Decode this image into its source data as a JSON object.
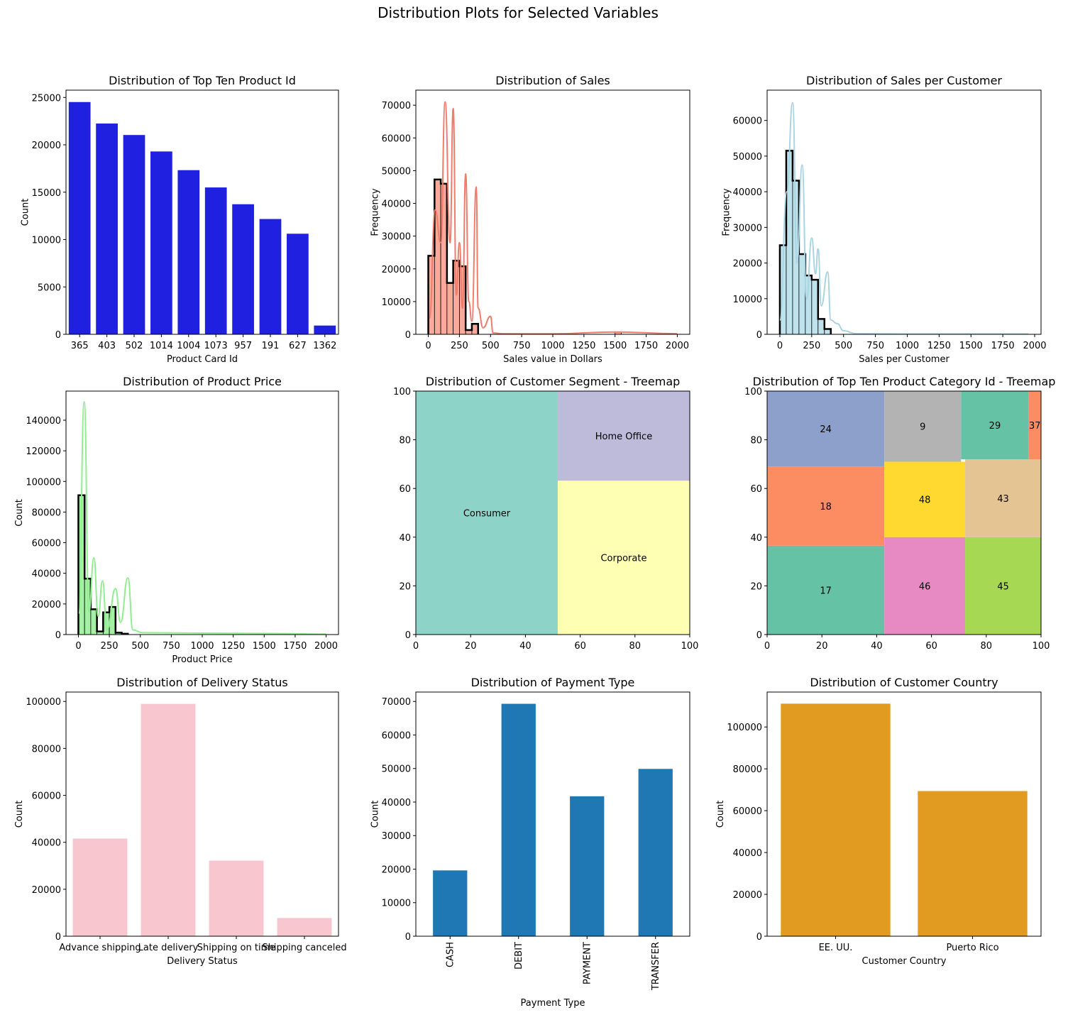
{
  "figure": {
    "title": "Distribution Plots for Selected Variables"
  },
  "chart_data": [
    {
      "id": "top-product-id",
      "type": "bar",
      "title": "Distribution of Top Ten Product Id",
      "xlabel": "Product Card Id",
      "ylabel": "Count",
      "categories": [
        "365",
        "403",
        "502",
        "1014",
        "1004",
        "1073",
        "957",
        "191",
        "627",
        "1362"
      ],
      "values": [
        24515,
        22246,
        21035,
        19298,
        17325,
        15500,
        13729,
        12169,
        10617,
        924
      ],
      "ylim": [
        0,
        25770
      ],
      "yticks": [
        0,
        5000,
        10000,
        15000,
        20000,
        25000
      ],
      "color": "#2020e0"
    },
    {
      "id": "sales",
      "type": "histogram",
      "title": "Distribution of Sales",
      "xlabel": "Sales value in Dollars",
      "ylabel": "Frequency",
      "bin_width": 50,
      "bins_start": 0,
      "values": [
        24000,
        47300,
        46000,
        15700,
        22500,
        20800,
        1300,
        3200,
        0,
        0,
        0,
        0,
        0,
        0,
        0,
        200,
        0,
        0,
        0,
        0,
        0,
        0,
        0,
        0,
        0,
        0,
        0,
        0,
        0,
        0,
        700,
        0,
        0,
        0,
        0,
        0,
        0,
        0,
        0,
        0
      ],
      "kde_peaks": [
        [
          9,
          5000
        ],
        [
          55,
          38000
        ],
        [
          100,
          28000
        ],
        [
          135,
          71000
        ],
        [
          175,
          28000
        ],
        [
          200,
          69000
        ],
        [
          225,
          12000
        ],
        [
          250,
          28000
        ],
        [
          275,
          8000
        ],
        [
          300,
          49000
        ],
        [
          325,
          10000
        ],
        [
          350,
          4000
        ],
        [
          385,
          45000
        ],
        [
          400,
          8000
        ],
        [
          440,
          2000
        ],
        [
          500,
          5500
        ],
        [
          520,
          400
        ],
        [
          600,
          200
        ],
        [
          1000,
          150
        ],
        [
          1500,
          700
        ],
        [
          2000,
          200
        ]
      ],
      "xlim": [
        -100,
        2100
      ],
      "ylim": [
        0,
        74600
      ],
      "xticks": [
        0,
        250,
        500,
        750,
        1000,
        1250,
        1500,
        1750,
        2000
      ],
      "yticks": [
        0,
        10000,
        20000,
        30000,
        40000,
        50000,
        60000,
        70000
      ],
      "fill": "#f9aa9a",
      "line": "#f07c6c"
    },
    {
      "id": "sales-per-customer",
      "type": "histogram",
      "title": "Distribution of Sales per Customer",
      "xlabel": "Sales per Customer",
      "ylabel": "Frequency",
      "bin_width": 50,
      "bins_start": 0,
      "values": [
        25000,
        51500,
        43100,
        22500,
        16500,
        15300,
        4300,
        1500,
        0,
        0,
        0,
        0,
        0,
        0,
        0,
        100,
        0,
        0,
        0,
        0,
        0,
        0,
        0,
        0,
        0,
        0,
        0,
        0,
        0,
        0,
        100,
        0,
        0,
        0,
        0,
        0,
        0,
        0,
        0
      ],
      "kde_peaks": [
        [
          0,
          4000
        ],
        [
          55,
          40000
        ],
        [
          100,
          65000
        ],
        [
          135,
          20000
        ],
        [
          175,
          47500
        ],
        [
          210,
          10000
        ],
        [
          250,
          27000
        ],
        [
          280,
          17000
        ],
        [
          300,
          24000
        ],
        [
          325,
          8000
        ],
        [
          375,
          17500
        ],
        [
          400,
          4000
        ],
        [
          450,
          3000
        ],
        [
          500,
          1000
        ],
        [
          600,
          200
        ],
        [
          1000,
          100
        ],
        [
          1500,
          100
        ],
        [
          1950,
          100
        ]
      ],
      "xlim": [
        -100,
        2050
      ],
      "ylim": [
        0,
        68500
      ],
      "xticks": [
        0,
        250,
        500,
        750,
        1000,
        1250,
        1500,
        1750,
        2000
      ],
      "yticks": [
        0,
        10000,
        20000,
        30000,
        40000,
        50000,
        60000
      ],
      "fill": "#bfe3ed",
      "line": "#a8d4e3"
    },
    {
      "id": "product-price",
      "type": "histogram",
      "title": "Distribution of Product Price",
      "xlabel": "Product Price",
      "ylabel": "Count",
      "bin_width": 50,
      "bins_start": 0,
      "values": [
        91000,
        36500,
        16500,
        2000,
        14500,
        18000,
        1200,
        500,
        0,
        0,
        0,
        0,
        0,
        0,
        0,
        0,
        0,
        0,
        0,
        0,
        0,
        0,
        0,
        0,
        0,
        0,
        0,
        0,
        0,
        0,
        500,
        0,
        0,
        0,
        0,
        0,
        0,
        0,
        0,
        0
      ],
      "kde_peaks": [
        [
          3,
          14000
        ],
        [
          47,
          152000
        ],
        [
          85,
          15000
        ],
        [
          125,
          50000
        ],
        [
          160,
          12000
        ],
        [
          195,
          35000
        ],
        [
          230,
          3000
        ],
        [
          300,
          30000
        ],
        [
          340,
          8000
        ],
        [
          400,
          37000
        ],
        [
          440,
          3000
        ],
        [
          520,
          1200
        ],
        [
          1500,
          700
        ],
        [
          2000,
          300
        ]
      ],
      "xlim": [
        -100,
        2100
      ],
      "ylim": [
        0,
        159000
      ],
      "xticks": [
        0,
        250,
        500,
        750,
        1000,
        1250,
        1500,
        1750,
        2000
      ],
      "yticks": [
        0,
        20000,
        40000,
        60000,
        80000,
        100000,
        120000,
        140000
      ],
      "fill": "#a6f0a6",
      "line": "#90ee90"
    },
    {
      "id": "customer-segment",
      "type": "treemap",
      "title": "Distribution of Customer Segment - Treemap",
      "xlim": [
        0,
        100
      ],
      "ylim": [
        0,
        100
      ],
      "xticks": [
        0,
        20,
        40,
        60,
        80,
        100
      ],
      "yticks": [
        0,
        20,
        40,
        60,
        80,
        100
      ],
      "rects": [
        {
          "label": "Consumer",
          "x": 0,
          "y": 0,
          "w": 51.8,
          "h": 100,
          "color": "#8dd3c7"
        },
        {
          "label": "Corporate",
          "x": 51.8,
          "y": 0,
          "w": 48.2,
          "h": 63.2,
          "color": "#ffffb3"
        },
        {
          "label": "Home Office",
          "x": 51.8,
          "y": 63.2,
          "w": 48.2,
          "h": 36.8,
          "color": "#bebada"
        }
      ]
    },
    {
      "id": "product-category-id",
      "type": "treemap",
      "title": "Distribution of Top Ten Product Category Id - Treemap",
      "xlim": [
        0,
        100
      ],
      "ylim": [
        0,
        100
      ],
      "xticks": [
        0,
        20,
        40,
        60,
        80,
        100
      ],
      "yticks": [
        0,
        20,
        40,
        60,
        80,
        100
      ],
      "rects": [
        {
          "label": "17",
          "x": 0,
          "y": 0,
          "w": 42.8,
          "h": 36.5,
          "color": "#66c2a5"
        },
        {
          "label": "18",
          "x": 0,
          "y": 36.5,
          "w": 42.8,
          "h": 32.5,
          "color": "#fc8d62"
        },
        {
          "label": "24",
          "x": 0,
          "y": 69,
          "w": 42.8,
          "h": 31,
          "color": "#8da0cb"
        },
        {
          "label": "46",
          "x": 42.8,
          "y": 0,
          "w": 29.5,
          "h": 40,
          "color": "#e78ac3"
        },
        {
          "label": "48",
          "x": 42.8,
          "y": 40,
          "w": 29.5,
          "h": 31,
          "color": "#ffd92f"
        },
        {
          "label": "45",
          "x": 72.3,
          "y": 0,
          "w": 27.7,
          "h": 40,
          "color": "#a6d854"
        },
        {
          "label": "43",
          "x": 72.3,
          "y": 40,
          "w": 27.7,
          "h": 32,
          "color": "#e5c494"
        },
        {
          "label": "9",
          "x": 42.8,
          "y": 71,
          "w": 28,
          "h": 29,
          "color": "#b3b3b3"
        },
        {
          "label": "29",
          "x": 70.8,
          "y": 72,
          "w": 24.7,
          "h": 28,
          "color": "#66c2a5"
        },
        {
          "label": "37",
          "x": 95.5,
          "y": 72,
          "w": 4.5,
          "h": 28,
          "color": "#fc8d62"
        }
      ]
    },
    {
      "id": "delivery-status",
      "type": "bar",
      "title": "Distribution of Delivery Status",
      "xlabel": "Delivery Status",
      "ylabel": "Count",
      "categories": [
        "Advance shipping",
        "Late delivery",
        "Shipping on time",
        "Shipping canceled"
      ],
      "values": [
        41592,
        98977,
        32196,
        7754
      ],
      "ylim": [
        0,
        104000
      ],
      "yticks": [
        0,
        20000,
        40000,
        60000,
        80000,
        100000
      ],
      "color": "#f8c6cf"
    },
    {
      "id": "payment-type",
      "type": "bar",
      "title": "Distribution of Payment Type",
      "xlabel": "Payment Type",
      "ylabel": "Count",
      "categories": [
        "CASH",
        "DEBIT",
        "PAYMENT",
        "TRANSFER"
      ],
      "values": [
        19616,
        69295,
        41725,
        49883
      ],
      "ylim": [
        0,
        72800
      ],
      "yticks": [
        0,
        10000,
        20000,
        30000,
        40000,
        50000,
        60000,
        70000
      ],
      "color": "#1f77b4",
      "rotate_xticks": true
    },
    {
      "id": "customer-country",
      "type": "bar",
      "title": "Distribution of Customer Country",
      "xlabel": "Customer Country",
      "ylabel": "Count",
      "categories": [
        "EE. UU.",
        "Puerto Rico"
      ],
      "values": [
        111146,
        69373
      ],
      "ylim": [
        0,
        116700
      ],
      "yticks": [
        0,
        20000,
        40000,
        60000,
        80000,
        100000
      ],
      "color": "#e09b20"
    }
  ]
}
